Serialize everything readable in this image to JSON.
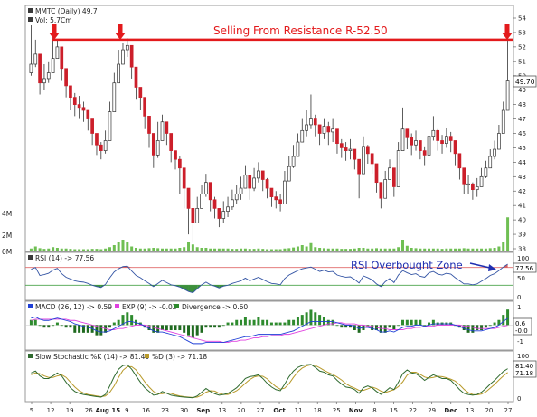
{
  "header": {
    "symbol_label": "MMTC (Daily) 49.7",
    "vol_label": "Vol: 5.7Cm"
  },
  "annotations": {
    "resistance_text": "Selling From Resistance  R-52.50",
    "rsi_text": "RSI Overbought Zone"
  },
  "price_badge": "49.70",
  "panels": {
    "rsi": {
      "label": "RSI (14) -> 77.56",
      "badge": "77.56",
      "ticks": [
        "100",
        "50",
        "0"
      ]
    },
    "macd": {
      "label1": "MACD (26, 12) -> 0.59",
      "label2": "EXP (9) -> -0.02",
      "label3": "Divergence -> 0.60",
      "ticks": [
        "1",
        "0.6",
        "-0.0",
        "-1"
      ]
    },
    "stoch": {
      "label1": "Slow Stochastic %K (14) -> 81.40",
      "label2": "%D (3) -> 71.18",
      "ticks": [
        "100",
        "81.40",
        "71.18",
        "0"
      ]
    }
  },
  "volume_ticks": [
    "4M",
    "2M",
    "0M"
  ],
  "x_ticks": [
    {
      "label": "5",
      "bold": false
    },
    {
      "label": "12",
      "bold": false
    },
    {
      "label": "19",
      "bold": false
    },
    {
      "label": "26",
      "bold": false
    },
    {
      "label": "Aug 15",
      "bold": true
    },
    {
      "label": "9",
      "bold": false
    },
    {
      "label": "16",
      "bold": false
    },
    {
      "label": "23",
      "bold": false
    },
    {
      "label": "30",
      "bold": false
    },
    {
      "label": "Sep",
      "bold": true
    },
    {
      "label": "13",
      "bold": false
    },
    {
      "label": "20",
      "bold": false
    },
    {
      "label": "27",
      "bold": false
    },
    {
      "label": "Oct",
      "bold": true
    },
    {
      "label": "11",
      "bold": false
    },
    {
      "label": "18",
      "bold": false
    },
    {
      "label": "25",
      "bold": false
    },
    {
      "label": "Nov",
      "bold": true
    },
    {
      "label": "8",
      "bold": false
    },
    {
      "label": "15",
      "bold": false
    },
    {
      "label": "22",
      "bold": false
    },
    {
      "label": "29",
      "bold": false
    },
    {
      "label": "Dec",
      "bold": true
    },
    {
      "label": "13",
      "bold": false
    },
    {
      "label": "20",
      "bold": false
    },
    {
      "label": "27",
      "bold": false
    }
  ],
  "colors": {
    "resistance": "#e31a1c",
    "up": "#ffffff",
    "down": "#cc1f2a",
    "volume": "#6fbf53",
    "macd": "#1f3fd6",
    "signal": "#e040e0",
    "stoch_k": "#2f6a2f",
    "stoch_d": "#b89a2a",
    "rsi_line": "#3354a4"
  },
  "chart_data": {
    "type": "candlestick",
    "ylim": [
      38,
      54
    ],
    "y_ticks": [
      54,
      53,
      52,
      51,
      50,
      49,
      48,
      47,
      46,
      45,
      44,
      43,
      42,
      41,
      40,
      39,
      38
    ],
    "resistance": 52.5,
    "close": [
      50.8,
      51.5,
      49.5,
      49.8,
      50.2,
      51.2,
      52.0,
      50.5,
      49.3,
      48.5,
      48.0,
      47.8,
      47.6,
      47.0,
      46.0,
      45.2,
      44.8,
      45.5,
      47.5,
      49.5,
      50.8,
      51.8,
      52.1,
      50.6,
      49.2,
      48.5,
      47.2,
      46.0,
      44.5,
      45.5,
      46.8,
      46.0,
      44.8,
      44.2,
      43.6,
      42.2,
      40.8,
      39.8,
      40.8,
      41.8,
      42.6,
      41.4,
      40.8,
      40.1,
      40.6,
      40.9,
      41.4,
      41.8,
      42.2,
      43.1,
      42.2,
      42.9,
      43.4,
      42.8,
      42.2,
      41.6,
      41.4,
      41.1,
      42.7,
      43.7,
      44.4,
      45.4,
      46.2,
      46.6,
      47.0,
      46.6,
      46.0,
      46.5,
      46.1,
      46.3,
      45.3,
      45.0,
      44.8,
      44.9,
      44.2,
      43.2,
      45.1,
      44.6,
      43.9,
      42.6,
      41.5,
      42.8,
      43.6,
      42.3,
      44.8,
      46.3,
      45.7,
      45.2,
      45.5,
      44.8,
      44.5,
      45.8,
      46.2,
      45.5,
      45.3,
      45.8,
      45.5,
      44.6,
      43.6,
      42.5,
      42.5,
      42.1,
      42.3,
      43.0,
      43.6,
      44.4,
      44.9,
      46.0,
      47.6,
      49.7
    ],
    "high": [
      53.5,
      52.5,
      51.0,
      50.8,
      51.0,
      52.8,
      52.5,
      51.2,
      50.0,
      49.2,
      48.8,
      48.6,
      48.2,
      47.6,
      47.0,
      45.8,
      45.4,
      46.2,
      48.2,
      50.2,
      51.8,
      52.3,
      52.6,
      51.3,
      50.0,
      49.2,
      48.0,
      46.8,
      45.6,
      46.8,
      47.3,
      46.8,
      45.6,
      44.8,
      44.4,
      43.0,
      41.5,
      40.6,
      41.6,
      42.4,
      43.2,
      42.2,
      41.6,
      40.8,
      41.3,
      41.6,
      42.1,
      42.4,
      43.0,
      43.8,
      43.0,
      43.6,
      44.0,
      43.4,
      42.9,
      42.2,
      42.0,
      41.8,
      43.4,
      44.4,
      45.2,
      46.0,
      47.0,
      47.6,
      48.7,
      47.3,
      46.6,
      47.0,
      46.8,
      47.0,
      46.0,
      45.6,
      45.4,
      45.6,
      44.9,
      43.8,
      45.8,
      45.2,
      44.6,
      43.2,
      42.5,
      43.4,
      44.2,
      43.0,
      45.4,
      47.8,
      46.3,
      46.0,
      46.2,
      45.4,
      45.1,
      46.4,
      47.2,
      46.3,
      45.9,
      46.4,
      46.1,
      45.2,
      44.2,
      43.2,
      43.1,
      42.6,
      42.9,
      43.6,
      44.1,
      44.9,
      45.5,
      46.6,
      48.2,
      52.6
    ],
    "low": [
      50.0,
      50.6,
      48.7,
      49.0,
      49.5,
      50.2,
      51.2,
      49.7,
      48.5,
      47.6,
      47.2,
      47.0,
      46.8,
      46.2,
      45.2,
      44.5,
      44.2,
      44.6,
      46.2,
      48.2,
      49.8,
      51.0,
      51.3,
      49.8,
      48.4,
      47.6,
      46.3,
      45.0,
      43.6,
      44.3,
      45.9,
      45.2,
      44.0,
      43.5,
      41.8,
      40.8,
      39.0,
      38.4,
      39.8,
      40.8,
      41.6,
      40.6,
      40.1,
      39.5,
      39.8,
      40.2,
      40.7,
      41.1,
      41.4,
      42.2,
      41.4,
      42.0,
      42.6,
      42.0,
      41.5,
      40.9,
      40.8,
      40.6,
      41.8,
      42.8,
      43.6,
      44.6,
      45.4,
      45.8,
      46.3,
      45.8,
      45.2,
      45.6,
      45.2,
      45.4,
      44.6,
      44.3,
      44.1,
      44.2,
      43.5,
      41.5,
      43.9,
      43.9,
      43.2,
      41.9,
      40.8,
      41.8,
      42.8,
      41.6,
      43.2,
      45.0,
      44.9,
      44.5,
      44.8,
      44.2,
      43.8,
      44.7,
      45.5,
      44.8,
      44.6,
      45.0,
      44.7,
      43.8,
      42.8,
      41.8,
      41.8,
      41.4,
      41.6,
      42.3,
      42.9,
      43.6,
      44.2,
      45.2,
      46.8,
      48.8
    ],
    "volume": [
      0.3,
      0.6,
      0.35,
      0.25,
      0.3,
      0.5,
      0.4,
      0.3,
      0.3,
      0.25,
      0.2,
      0.2,
      0.2,
      0.2,
      0.25,
      0.25,
      0.2,
      0.3,
      0.5,
      0.8,
      1.2,
      1.6,
      1.3,
      0.6,
      0.4,
      0.3,
      0.3,
      0.35,
      0.4,
      0.35,
      0.3,
      0.3,
      0.3,
      0.3,
      0.4,
      0.5,
      1.2,
      0.9,
      0.5,
      0.4,
      0.4,
      0.3,
      0.3,
      0.3,
      0.3,
      0.3,
      0.25,
      0.25,
      0.3,
      0.3,
      0.25,
      0.25,
      0.3,
      0.25,
      0.2,
      0.2,
      0.2,
      0.2,
      0.3,
      0.35,
      0.45,
      0.6,
      0.8,
      0.6,
      1.1,
      0.5,
      0.4,
      0.35,
      0.3,
      0.3,
      0.3,
      0.25,
      0.25,
      0.25,
      0.3,
      0.4,
      0.4,
      0.3,
      0.3,
      0.35,
      0.3,
      0.3,
      0.3,
      0.3,
      0.5,
      1.6,
      0.7,
      0.4,
      0.35,
      0.3,
      0.3,
      0.3,
      0.3,
      0.3,
      0.25,
      0.3,
      0.3,
      0.3,
      0.3,
      0.35,
      0.3,
      0.3,
      0.3,
      0.3,
      0.3,
      0.35,
      0.4,
      0.6,
      1.2,
      4.9
    ],
    "volume_ylim": [
      0,
      6
    ],
    "rsi": [
      66,
      70,
      52,
      54,
      57,
      64,
      68,
      56,
      48,
      44,
      40,
      38,
      37,
      34,
      30,
      27,
      25,
      32,
      47,
      60,
      67,
      72,
      73,
      62,
      52,
      47,
      40,
      34,
      27,
      34,
      41,
      36,
      31,
      29,
      26,
      21,
      16,
      13,
      22,
      31,
      37,
      31,
      28,
      24,
      28,
      30,
      34,
      37,
      40,
      46,
      40,
      44,
      48,
      43,
      38,
      34,
      33,
      31,
      45,
      53,
      58,
      63,
      67,
      69,
      71,
      66,
      61,
      64,
      60,
      61,
      53,
      50,
      48,
      49,
      43,
      35,
      51,
      47,
      42,
      33,
      27,
      38,
      45,
      36,
      53,
      63,
      58,
      54,
      56,
      50,
      48,
      58,
      61,
      55,
      53,
      57,
      55,
      47,
      40,
      33,
      33,
      31,
      33,
      39,
      45,
      52,
      56,
      63,
      71,
      77.56
    ],
    "rsi_ylim": [
      0,
      100
    ],
    "macd": [
      0.6,
      0.7,
      0.5,
      0.4,
      0.4,
      0.5,
      0.6,
      0.5,
      0.4,
      0.3,
      0.1,
      0.0,
      -0.1,
      -0.2,
      -0.3,
      -0.5,
      -0.6,
      -0.6,
      -0.5,
      -0.3,
      -0.1,
      0.1,
      0.3,
      0.3,
      0.2,
      0.1,
      -0.1,
      -0.3,
      -0.5,
      -0.6,
      -0.6,
      -0.7,
      -0.8,
      -0.9,
      -1.0,
      -1.2,
      -1.4,
      -1.6,
      -1.6,
      -1.6,
      -1.5,
      -1.5,
      -1.5,
      -1.5,
      -1.5,
      -1.4,
      -1.3,
      -1.2,
      -1.1,
      -1.0,
      -1.0,
      -0.9,
      -0.8,
      -0.8,
      -0.8,
      -0.8,
      -0.8,
      -0.8,
      -0.7,
      -0.6,
      -0.5,
      -0.3,
      -0.1,
      0.1,
      0.3,
      0.3,
      0.3,
      0.3,
      0.3,
      0.3,
      0.2,
      0.1,
      0.0,
      0.0,
      -0.1,
      -0.3,
      -0.2,
      -0.2,
      -0.3,
      -0.4,
      -0.6,
      -0.6,
      -0.5,
      -0.6,
      -0.4,
      -0.2,
      -0.1,
      -0.1,
      0.0,
      0.0,
      -0.1,
      0.0,
      0.1,
      0.1,
      0.1,
      0.1,
      0.1,
      0.0,
      -0.1,
      -0.3,
      -0.4,
      -0.5,
      -0.5,
      -0.5,
      -0.4,
      -0.3,
      -0.2,
      0.0,
      0.3,
      0.59
    ],
    "macd_signal": [
      0.4,
      0.5,
      0.5,
      0.5,
      0.5,
      0.5,
      0.5,
      0.5,
      0.5,
      0.4,
      0.4,
      0.3,
      0.2,
      0.1,
      0.0,
      -0.1,
      -0.2,
      -0.3,
      -0.4,
      -0.4,
      -0.3,
      -0.3,
      -0.2,
      -0.1,
      0.0,
      0.0,
      0.0,
      -0.1,
      -0.2,
      -0.3,
      -0.4,
      -0.5,
      -0.6,
      -0.7,
      -0.8,
      -0.9,
      -1.0,
      -1.1,
      -1.2,
      -1.3,
      -1.4,
      -1.4,
      -1.4,
      -1.4,
      -1.5,
      -1.5,
      -1.4,
      -1.4,
      -1.3,
      -1.3,
      -1.2,
      -1.1,
      -1.1,
      -1.0,
      -1.0,
      -0.9,
      -0.9,
      -0.9,
      -0.8,
      -0.8,
      -0.7,
      -0.6,
      -0.5,
      -0.4,
      -0.3,
      -0.2,
      -0.1,
      0.0,
      0.1,
      0.1,
      0.2,
      0.2,
      0.1,
      0.1,
      0.1,
      0.0,
      0.0,
      -0.1,
      -0.1,
      -0.2,
      -0.3,
      -0.3,
      -0.4,
      -0.4,
      -0.4,
      -0.4,
      -0.3,
      -0.3,
      -0.2,
      -0.2,
      -0.1,
      -0.1,
      -0.1,
      0.0,
      0.0,
      0.0,
      0.0,
      0.0,
      0.0,
      -0.1,
      -0.1,
      -0.2,
      -0.3,
      -0.3,
      -0.3,
      -0.3,
      -0.3,
      -0.2,
      -0.1,
      -0.02
    ],
    "macd_ylim": [
      -2,
      1.2
    ],
    "stoch_k": [
      70,
      75,
      62,
      55,
      55,
      62,
      70,
      62,
      45,
      30,
      20,
      15,
      12,
      10,
      8,
      6,
      5,
      12,
      35,
      60,
      80,
      90,
      92,
      80,
      62,
      45,
      30,
      20,
      10,
      12,
      20,
      15,
      10,
      8,
      6,
      5,
      4,
      3,
      8,
      18,
      28,
      20,
      14,
      10,
      12,
      15,
      22,
      30,
      42,
      55,
      60,
      62,
      65,
      55,
      42,
      32,
      25,
      22,
      40,
      60,
      75,
      85,
      90,
      92,
      93,
      85,
      75,
      72,
      65,
      62,
      50,
      40,
      32,
      30,
      25,
      15,
      30,
      35,
      30,
      20,
      12,
      20,
      30,
      25,
      45,
      68,
      78,
      70,
      68,
      60,
      50,
      58,
      65,
      60,
      55,
      55,
      50,
      38,
      25,
      15,
      12,
      10,
      12,
      18,
      28,
      40,
      50,
      62,
      74,
      81.4
    ],
    "stoch_d": [
      65,
      70,
      68,
      62,
      58,
      58,
      62,
      65,
      58,
      45,
      32,
      22,
      16,
      12,
      10,
      8,
      6,
      8,
      18,
      35,
      58,
      77,
      87,
      87,
      78,
      62,
      46,
      32,
      20,
      14,
      14,
      16,
      15,
      11,
      8,
      6,
      5,
      4,
      5,
      10,
      18,
      22,
      21,
      15,
      12,
      12,
      16,
      22,
      31,
      42,
      52,
      59,
      62,
      61,
      54,
      43,
      33,
      26,
      29,
      41,
      58,
      73,
      83,
      89,
      92,
      90,
      84,
      77,
      71,
      66,
      59,
      51,
      41,
      34,
      29,
      23,
      23,
      27,
      32,
      28,
      21,
      17,
      21,
      25,
      33,
      46,
      64,
      72,
      72,
      66,
      59,
      56,
      58,
      61,
      60,
      57,
      53,
      48,
      38,
      26,
      17,
      12,
      11,
      13,
      19,
      29,
      39,
      51,
      62,
      71.18
    ],
    "stoch_ylim": [
      0,
      100
    ]
  }
}
